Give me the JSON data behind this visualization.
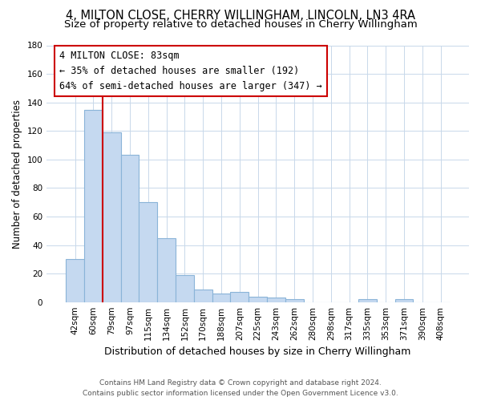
{
  "title": "4, MILTON CLOSE, CHERRY WILLINGHAM, LINCOLN, LN3 4RA",
  "subtitle": "Size of property relative to detached houses in Cherry Willingham",
  "xlabel": "Distribution of detached houses by size in Cherry Willingham",
  "ylabel": "Number of detached properties",
  "bar_labels": [
    "42sqm",
    "60sqm",
    "79sqm",
    "97sqm",
    "115sqm",
    "134sqm",
    "152sqm",
    "170sqm",
    "188sqm",
    "207sqm",
    "225sqm",
    "243sqm",
    "262sqm",
    "280sqm",
    "298sqm",
    "317sqm",
    "335sqm",
    "353sqm",
    "371sqm",
    "390sqm",
    "408sqm"
  ],
  "bar_values": [
    30,
    135,
    119,
    103,
    70,
    45,
    19,
    9,
    6,
    7,
    4,
    3,
    2,
    0,
    0,
    0,
    2,
    0,
    2,
    0,
    0
  ],
  "bar_color": "#c5d9f0",
  "bar_edge_color": "#8ab4d8",
  "vline_x_index": 1,
  "vline_color": "#cc0000",
  "ylim": [
    0,
    180
  ],
  "yticks": [
    0,
    20,
    40,
    60,
    80,
    100,
    120,
    140,
    160,
    180
  ],
  "annotation_title": "4 MILTON CLOSE: 83sqm",
  "annotation_line1": "← 35% of detached houses are smaller (192)",
  "annotation_line2": "64% of semi-detached houses are larger (347) →",
  "footer1": "Contains HM Land Registry data © Crown copyright and database right 2024.",
  "footer2": "Contains public sector information licensed under the Open Government Licence v3.0.",
  "bg_color": "#ffffff",
  "grid_color": "#c8d8ea",
  "title_fontsize": 10.5,
  "subtitle_fontsize": 9.5,
  "ylabel_fontsize": 8.5,
  "xlabel_fontsize": 9,
  "tick_fontsize": 7.5,
  "ann_fontsize": 8.5,
  "footer_fontsize": 6.5
}
